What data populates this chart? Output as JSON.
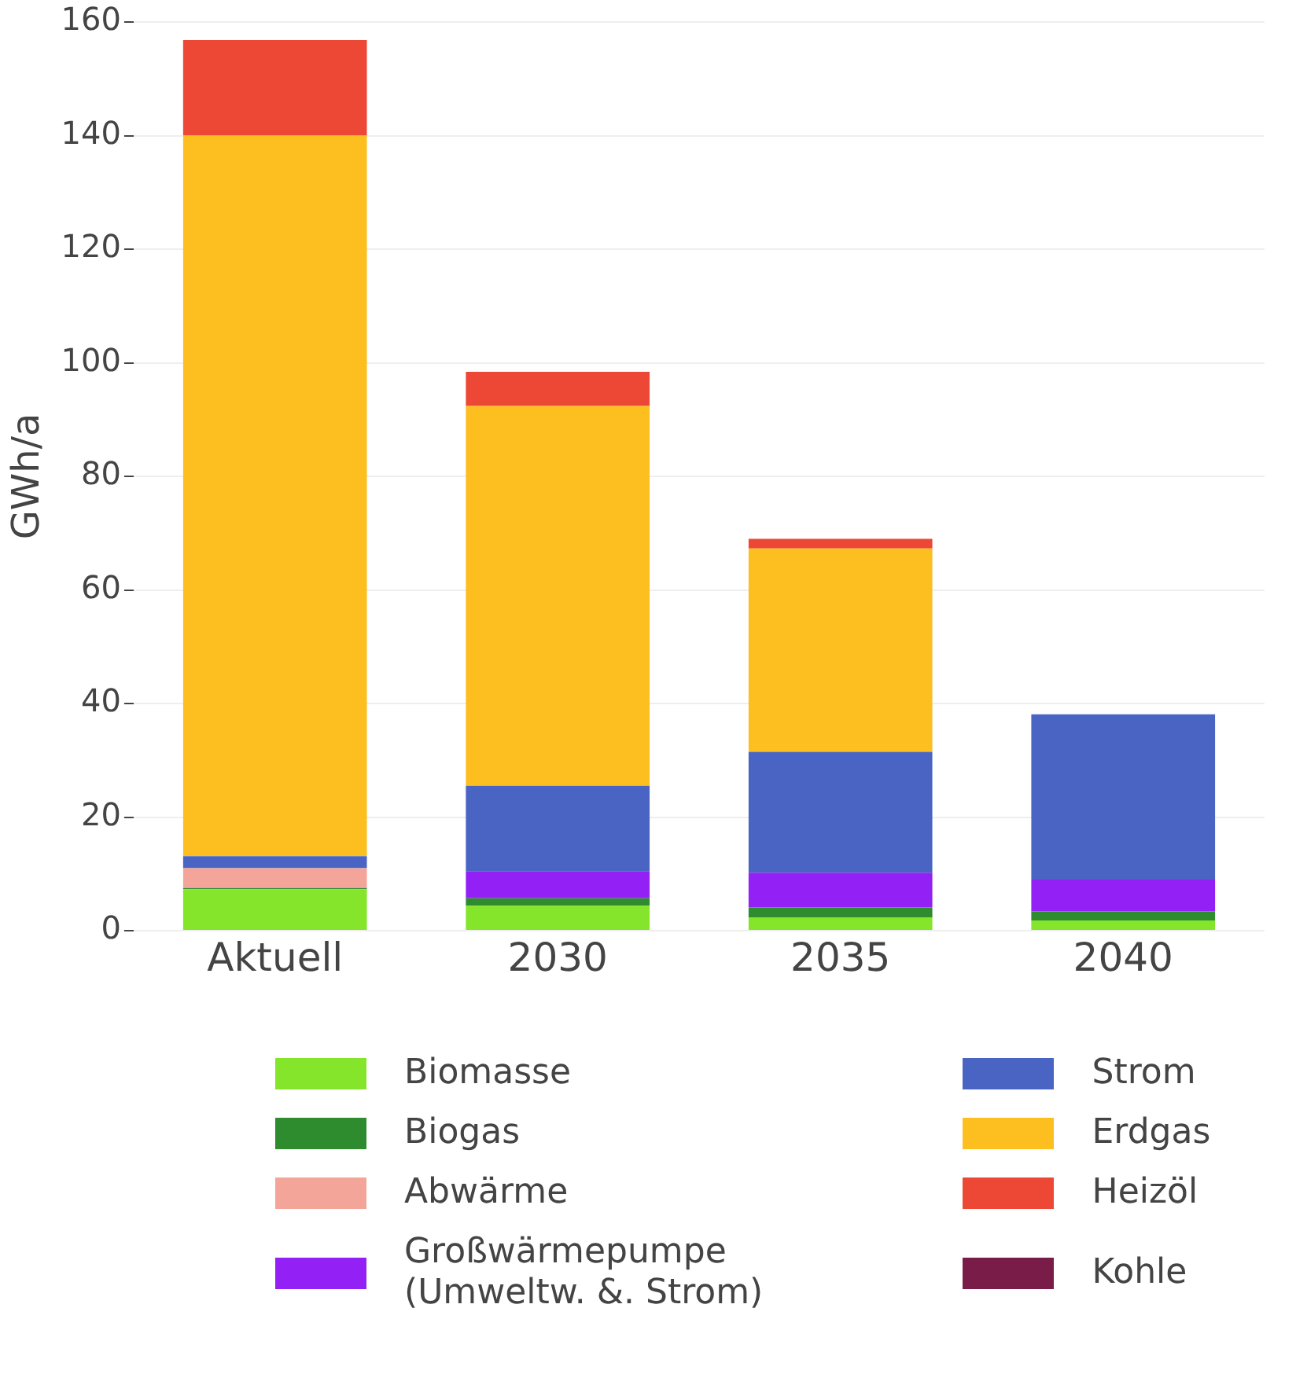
{
  "chart_data": {
    "type": "bar",
    "stacked": true,
    "ylabel": "GWh/a",
    "categories": [
      "Aktuell",
      "2030",
      "2035",
      "2040"
    ],
    "ylim": [
      0,
      160
    ],
    "yticks": [
      0,
      20,
      40,
      60,
      80,
      100,
      120,
      140,
      160
    ],
    "grid": "y",
    "legend": "bottom",
    "series": [
      {
        "name": "Biomasse",
        "color": "#84e52a",
        "values": [
          7.3,
          4.4,
          2.3,
          1.8
        ]
      },
      {
        "name": "Biogas",
        "color": "#2e8b2e",
        "values": [
          0.2,
          1.3,
          1.8,
          1.6
        ]
      },
      {
        "name": "Abwärme",
        "color": "#f4a59a",
        "values": [
          3.5,
          0,
          0,
          0
        ]
      },
      {
        "name": "Großwärmepumpe (Umweltw. &. Strom)",
        "color": "#9321f5",
        "values": [
          0,
          4.8,
          6.1,
          5.6
        ]
      },
      {
        "name": "Strom",
        "color": "#4a64c4",
        "values": [
          2.1,
          15.0,
          21.3,
          29.1
        ]
      },
      {
        "name": "Erdgas",
        "color": "#fdbe20",
        "values": [
          126.9,
          66.9,
          35.8,
          0
        ]
      },
      {
        "name": "Heizöl",
        "color": "#ec4835",
        "values": [
          16.8,
          6.0,
          1.7,
          0
        ]
      },
      {
        "name": "Kohle",
        "color": "#7a1c48",
        "values": [
          0,
          0,
          0,
          0
        ]
      }
    ]
  }
}
